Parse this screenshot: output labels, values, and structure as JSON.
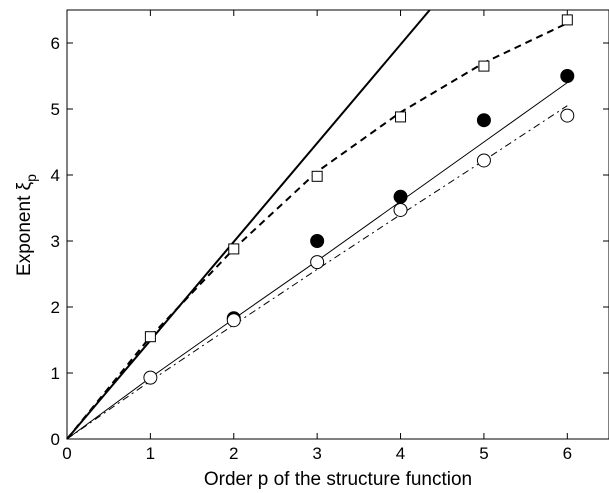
{
  "chart_data": {
    "type": "line",
    "title": "",
    "xlabel": "Order p of the structure function",
    "ylabel": {
      "base": "Exponent ξ",
      "subscript": "p"
    },
    "xlim": [
      0,
      6.5
    ],
    "ylim": [
      0,
      6.5
    ],
    "xticks": [
      "0",
      "1",
      "2",
      "3",
      "4",
      "5",
      "6"
    ],
    "yticks": [
      "0",
      "1",
      "2",
      "3",
      "4",
      "5",
      "6"
    ],
    "grid": false,
    "legend": "none",
    "series": [
      {
        "style": "thick-solid-line",
        "color": "#000000",
        "x": [
          0,
          4.35
        ],
        "y": [
          0,
          6.5
        ]
      },
      {
        "style": "dashed-line",
        "color": "#000000",
        "x": [
          0,
          1,
          2,
          3,
          4,
          5,
          6
        ],
        "y": [
          0,
          1.55,
          2.88,
          4.05,
          4.95,
          5.7,
          6.3
        ]
      },
      {
        "style": "thin-solid-line",
        "color": "#000000",
        "x": [
          0,
          1,
          2,
          3,
          4,
          5,
          6
        ],
        "y": [
          0,
          0.93,
          1.82,
          2.7,
          3.6,
          4.5,
          5.4
        ]
      },
      {
        "style": "dash-dot-line",
        "color": "#000000",
        "x": [
          0,
          1,
          2,
          3,
          4,
          5,
          6
        ],
        "y": [
          0,
          0.88,
          1.73,
          2.57,
          3.4,
          4.22,
          5.05
        ]
      },
      {
        "style": "open-square-markers",
        "color": "#000000",
        "x": [
          1,
          2,
          3,
          4,
          5,
          6
        ],
        "y": [
          1.55,
          2.88,
          3.98,
          4.88,
          5.65,
          6.35
        ]
      },
      {
        "style": "filled-circle-markers",
        "color": "#000000",
        "x": [
          2,
          3,
          4,
          5,
          6
        ],
        "y": [
          1.83,
          3.0,
          3.67,
          4.83,
          5.5
        ]
      },
      {
        "style": "open-circle-markers",
        "color": "#000000",
        "x": [
          1,
          2,
          3,
          4,
          5,
          6
        ],
        "y": [
          0.93,
          1.8,
          2.68,
          3.47,
          4.22,
          4.9
        ]
      }
    ]
  }
}
